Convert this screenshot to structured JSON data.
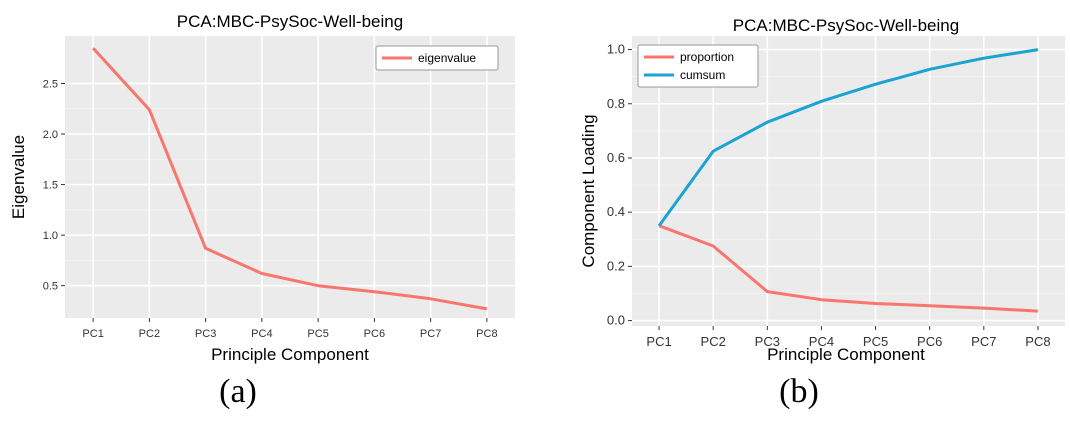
{
  "figure": {
    "panel_a_label": "(a)",
    "panel_b_label": "(b)"
  },
  "chart_data": [
    {
      "type": "line",
      "title": "PCA:MBC-PsySoc-Well-being",
      "xlabel": "Principle Component",
      "ylabel": "Eigenvalue",
      "categories": [
        "PC1",
        "PC2",
        "PC3",
        "PC4",
        "PC5",
        "PC6",
        "PC7",
        "PC8"
      ],
      "yticks": [
        0.5,
        1.0,
        1.5,
        2.0,
        2.5
      ],
      "ytick_labels": [
        "0.5",
        "1.0",
        "1.5",
        "2.0",
        "2.5"
      ],
      "ylim": [
        0.18,
        2.97
      ],
      "grid": true,
      "legend_position": "top-right",
      "series": [
        {
          "name": "eigenvalue",
          "color": "#f8766d",
          "values": [
            2.85,
            2.24,
            0.87,
            0.62,
            0.5,
            0.44,
            0.37,
            0.27
          ]
        }
      ]
    },
    {
      "type": "line",
      "title": "PCA:MBC-PsySoc-Well-being",
      "xlabel": "Principle Component",
      "ylabel": "Component Loading",
      "categories": [
        "PC1",
        "PC2",
        "PC3",
        "PC4",
        "PC5",
        "PC6",
        "PC7",
        "PC8"
      ],
      "yticks": [
        0.0,
        0.2,
        0.4,
        0.6,
        0.8,
        1.0
      ],
      "ytick_labels": [
        "0.0",
        "0.2",
        "0.4",
        "0.6",
        "0.8",
        "1.0"
      ],
      "ylim": [
        -0.02,
        1.05
      ],
      "grid": true,
      "legend_position": "top-left",
      "series": [
        {
          "name": "proportion",
          "color": "#f8766d",
          "values": [
            0.35,
            0.275,
            0.107,
            0.077,
            0.063,
            0.055,
            0.046,
            0.035
          ]
        },
        {
          "name": "cumsum",
          "color": "#1ba3d3",
          "values": [
            0.35,
            0.625,
            0.732,
            0.809,
            0.872,
            0.927,
            0.968,
            1.0
          ]
        }
      ]
    }
  ]
}
